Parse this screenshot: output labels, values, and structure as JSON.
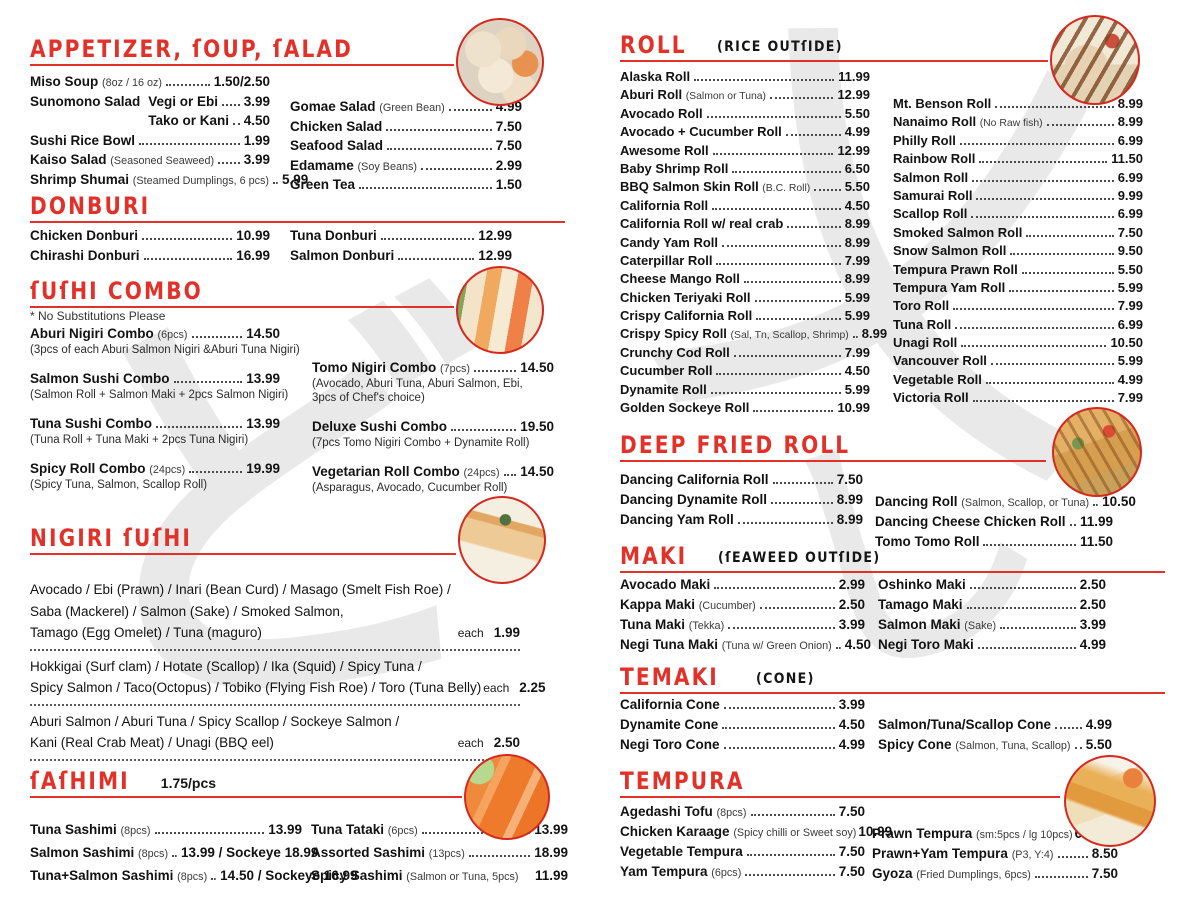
{
  "palette": {
    "accent_red": "#e23128",
    "text": "#121212",
    "note_text": "#3a3a3a",
    "watermark_gray": "#e9e9e9",
    "page_bg": "#ffffff"
  },
  "labels": {
    "each": "each"
  },
  "watermark_glyphs": [
    {
      "page": 0,
      "glyph": "ど"
    },
    {
      "page": 1,
      "glyph": "乂"
    },
    {
      "page": 1,
      "glyph": "し"
    }
  ],
  "photos": [
    {
      "name": "appetizer-photo"
    },
    {
      "name": "sushi-combo-photo"
    },
    {
      "name": "nigiri-photo"
    },
    {
      "name": "sashimi-photo"
    },
    {
      "name": "roll-photo"
    },
    {
      "name": "deep-fried-roll-photo"
    },
    {
      "name": "tempura-photo"
    }
  ],
  "sections": [
    {
      "id": "appetizer",
      "page": 0,
      "title": "APPETIZER, ſOUP, ſALAD",
      "columns": [
        [
          {
            "n": "Miso Soup (8oz / 16 oz)",
            "p": "1.50/2.50"
          },
          {
            "n": "Sunomono Salad",
            "sub": [
              {
                "n": "Vegi or Ebi",
                "p": "3.99"
              },
              {
                "n": "Tako or Kani",
                "p": "4.50"
              }
            ]
          },
          {
            "n": "Sushi Rice Bowl",
            "p": "1.99"
          },
          {
            "n": "Kaiso Salad (Seasoned Seaweed)",
            "p": "3.99"
          },
          {
            "n": "Shrimp Shumai (Steamed Dumplings, 6 pcs)",
            "p": "5.99"
          }
        ],
        [
          {
            "n": "Gomae Salad (Green Bean)",
            "p": "4.99"
          },
          {
            "n": "Chicken Salad",
            "p": "7.50"
          },
          {
            "n": "Seafood Salad",
            "p": "7.50"
          },
          {
            "n": "Edamame (Soy Beans)",
            "p": "2.99"
          },
          {
            "n": "Green Tea",
            "p": "1.50"
          }
        ]
      ]
    },
    {
      "id": "donburi",
      "page": 0,
      "title": "DONBURI",
      "columns": [
        [
          {
            "n": "Chicken Donburi",
            "p": "10.99"
          },
          {
            "n": "Chirashi Donburi",
            "p": "16.99"
          }
        ],
        [
          {
            "n": "Tuna Donburi",
            "p": "12.99"
          },
          {
            "n": "Salmon Donburi",
            "p": "12.99"
          }
        ]
      ]
    },
    {
      "id": "sushi-combo",
      "page": 0,
      "title": "ſUſHI COMBO",
      "note": "* No Substitutions  Please",
      "columns": [
        [
          {
            "n": "Aburi Nigiri Combo (6pcs)",
            "p": "14.50",
            "d": "(3pcs of each Aburi Salmon Nigiri &Aburi Tuna Nigiri)"
          },
          {
            "n": "Salmon Sushi Combo",
            "p": "13.99",
            "d": "(Salmon Roll + Salmon Maki + 2pcs Salmon Nigiri)"
          },
          {
            "n": "Tuna Sushi Combo",
            "p": "13.99",
            "d": "(Tuna Roll + Tuna Maki + 2pcs Tuna Nigiri)"
          },
          {
            "n": "Spicy Roll Combo (24pcs)",
            "p": "19.99",
            "d": "(Spicy Tuna, Salmon, Scallop Roll)"
          }
        ],
        [
          {
            "n": "Tomo Nigiri Combo (7pcs)",
            "p": "14.50",
            "d": [
              "(Avocado, Aburi Tuna, Aburi Salmon, Ebi,",
              "3pcs of Chef's choice)"
            ]
          },
          {
            "n": "Deluxe Sushi Combo",
            "p": "19.50",
            "d": "(7pcs Tomo Nigiri Combo + Dynamite Roll)"
          },
          {
            "n": "Vegetarian Roll Combo (24pcs)",
            "p": "14.50",
            "d": "(Asparagus, Avocado, Cucumber Roll)"
          }
        ]
      ]
    },
    {
      "id": "nigiri-sushi",
      "page": 0,
      "title": "NIGIRI ſUſHI",
      "groups": [
        {
          "lines": [
            "Avocado / Ebi (Prawn) / Inari (Bean Curd) / Masago (Smelt Fish Roe) /",
            "Saba (Mackerel) / Salmon (Sake) / Smoked Salmon,",
            "Tamago (Egg Omelet) / Tuna (maguro)"
          ],
          "each": "each",
          "price": "1.99"
        },
        {
          "lines": [
            "Hokkigai (Surf clam) / Hotate (Scallop) / Ika (Squid) / Spicy Tuna /",
            "Spicy Salmon / Taco(Octopus) / Tobiko (Flying Fish Roe) / Toro (Tuna Belly)"
          ],
          "each": "each",
          "price": "2.25"
        },
        {
          "lines": [
            "Aburi Salmon /  Aburi Tuna / Spicy Scallop / Sockeye Salmon /",
            "Kani (Real Crab Meat) / Unagi (BBQ eel)"
          ],
          "each": "each",
          "price": "2.50"
        }
      ]
    },
    {
      "id": "sashimi",
      "page": 0,
      "title": "ſAſHIMI",
      "extra": "1.75/pcs",
      "columns": [
        [
          {
            "n": "Tuna Sashimi (8pcs)",
            "p": "13.99"
          },
          {
            "n": "Salmon Sashimi (8pcs)",
            "p": "13.99 / Sockeye 18.99"
          },
          {
            "n": "Tuna+Salmon Sashimi (8pcs)",
            "p": "14.50 / Sockeye 16.99"
          }
        ],
        [
          {
            "n": "Tuna Tataki (6pcs)",
            "p": "13.99"
          },
          {
            "n": "Assorted Sashimi (13pcs)",
            "p": "18.99"
          },
          {
            "n": "Spicy Sashimi (Salmon or Tuna, 5pcs)",
            "p": "11.99",
            "nd": true
          }
        ]
      ]
    },
    {
      "id": "roll",
      "page": 1,
      "title": "ROLL",
      "subtitle": "(RICE OUTſIDE)",
      "columns": [
        [
          {
            "n": "Alaska Roll",
            "p": "11.99"
          },
          {
            "n": "Aburi Roll (Salmon or Tuna)",
            "p": "12.99"
          },
          {
            "n": "Avocado Roll",
            "p": "5.50"
          },
          {
            "n": "Avocado + Cucumber Roll",
            "p": "4.99"
          },
          {
            "n": "Awesome Roll",
            "p": "12.99"
          },
          {
            "n": "Baby Shrimp Roll",
            "p": "6.50"
          },
          {
            "n": "BBQ Salmon Skin Roll (B.C. Roll)",
            "p": "5.50"
          },
          {
            "n": "California Roll",
            "p": "4.50"
          },
          {
            "n": "California Roll w/ real crab",
            "p": "8.99"
          },
          {
            "n": "Candy Yam Roll",
            "p": "8.99"
          },
          {
            "n": "Caterpillar Roll",
            "p": "7.99"
          },
          {
            "n": "Cheese Mango Roll",
            "p": "8.99"
          },
          {
            "n": "Chicken Teriyaki Roll",
            "p": "5.99"
          },
          {
            "n": "Crispy California Roll",
            "p": "5.99"
          },
          {
            "n": "Crispy Spicy Roll (Sal, Tn, Scallop, Shrimp)",
            "p": "8.99"
          },
          {
            "n": "Crunchy Cod Roll",
            "p": "7.99"
          },
          {
            "n": "Cucumber Roll",
            "p": "4.50"
          },
          {
            "n": "Dynamite Roll",
            "p": "5.99"
          },
          {
            "n": "Golden Sockeye Roll",
            "p": "10.99"
          }
        ],
        [
          {
            "n": "Mt. Benson Roll",
            "p": "8.99"
          },
          {
            "n": "Nanaimo Roll (No Raw fish)",
            "p": "8.99"
          },
          {
            "n": "Philly Roll",
            "p": "6.99"
          },
          {
            "n": "Rainbow Roll",
            "p": "11.50"
          },
          {
            "n": "Salmon Roll",
            "p": "6.99"
          },
          {
            "n": "Samurai Roll",
            "p": "9.99"
          },
          {
            "n": "Scallop Roll",
            "p": "6.99"
          },
          {
            "n": "Smoked Salmon Roll",
            "p": "7.50"
          },
          {
            "n": "Snow Salmon Roll",
            "p": "9.50"
          },
          {
            "n": "Tempura Prawn Roll",
            "p": "5.50"
          },
          {
            "n": "Tempura Yam Roll",
            "p": "5.99"
          },
          {
            "n": "Toro Roll",
            "p": "7.99"
          },
          {
            "n": "Tuna Roll",
            "p": "6.99"
          },
          {
            "n": "Unagi Roll",
            "p": "10.50"
          },
          {
            "n": "Vancouver Roll",
            "p": "5.99"
          },
          {
            "n": "Vegetable Roll",
            "p": "4.99"
          },
          {
            "n": "Victoria Roll",
            "p": "7.99"
          }
        ]
      ]
    },
    {
      "id": "deep-fried-roll",
      "page": 1,
      "title": "DEEP FRIED ROLL",
      "columns": [
        [
          {
            "n": "Dancing California Roll",
            "p": "7.50"
          },
          {
            "n": "Dancing Dynamite Roll",
            "p": "8.99"
          },
          {
            "n": "Dancing Yam Roll",
            "p": "8.99"
          }
        ],
        [
          {
            "n": "Dancing Roll (Salmon, Scallop, or Tuna)",
            "p": "10.50"
          },
          {
            "n": "Dancing Cheese Chicken Roll",
            "p": "11.99"
          },
          {
            "n": "Tomo Tomo Roll",
            "p": "11.50"
          }
        ]
      ]
    },
    {
      "id": "maki",
      "page": 1,
      "title": "MAKI",
      "subtitle": "(ſEAWEED OUTſIDE)",
      "columns": [
        [
          {
            "n": "Avocado Maki",
            "p": "2.99"
          },
          {
            "n": "Kappa Maki (Cucumber)",
            "p": "2.50"
          },
          {
            "n": "Tuna Maki (Tekka)",
            "p": "3.99"
          },
          {
            "n": "Negi Tuna Maki (Tuna w/ Green Onion)",
            "p": "4.50"
          }
        ],
        [
          {
            "n": "Oshinko Maki",
            "p": "2.50"
          },
          {
            "n": "Tamago Maki",
            "p": "2.50"
          },
          {
            "n": "Salmon Maki (Sake)",
            "p": "3.99"
          },
          {
            "n": "Negi Toro Maki",
            "p": "4.99"
          }
        ]
      ]
    },
    {
      "id": "temaki",
      "page": 1,
      "title": "TEMAKI",
      "subtitle": "(CONE)",
      "columns": [
        [
          {
            "n": "California Cone",
            "p": "3.99"
          },
          {
            "n": "Dynamite Cone",
            "p": "4.50"
          },
          {
            "n": "Negi Toro Cone",
            "p": "4.99"
          }
        ],
        [
          {
            "n": "Salmon/Tuna/Scallop Cone",
            "p": "4.99"
          },
          {
            "n": "Spicy Cone (Salmon, Tuna, Scallop)",
            "p": "5.50"
          }
        ]
      ]
    },
    {
      "id": "tempura",
      "page": 1,
      "title": "TEMPURA",
      "columns": [
        [
          {
            "n": "Agedashi Tofu (8pcs)",
            "p": "7.50"
          },
          {
            "n": "Chicken  Karaage (Spicy chilli or Sweet soy)",
            "p": "10.99",
            "nd": true
          },
          {
            "n": "Vegetable Tempura",
            "p": "7.50"
          },
          {
            "n": "Yam Tempura (6pcs)",
            "p": "7.50"
          }
        ],
        [
          {
            "n": "Prawn Tempura (sm:5pcs / lg 10pcs)",
            "p": "6.50/12.50",
            "nd": true
          },
          {
            "n": "Prawn+Yam Tempura (P3, Y:4)",
            "p": "8.50"
          },
          {
            "n": "Gyoza (Fried Dumplings, 6pcs)",
            "p": "7.50"
          }
        ]
      ]
    }
  ]
}
